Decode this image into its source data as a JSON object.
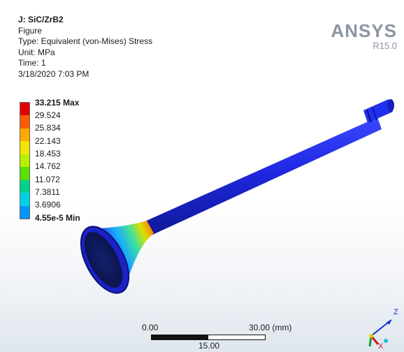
{
  "info": {
    "title": "J: SiC/ZrB2",
    "object": "Figure",
    "type": "Type: Equivalent (von-Mises) Stress",
    "unit": "Unit: MPa",
    "time": "Time: 1",
    "date": "3/18/2020 7:03 PM"
  },
  "brand": {
    "name": "ANSYS",
    "version": "R15.0"
  },
  "legend": {
    "labels": [
      {
        "text": "33.215 Max",
        "bold": true,
        "color": "#e00000"
      },
      {
        "text": "29.524",
        "bold": false,
        "color": "#ff5a00"
      },
      {
        "text": "25.834",
        "bold": false,
        "color": "#ffaa00"
      },
      {
        "text": "22.143",
        "bold": false,
        "color": "#f2e600"
      },
      {
        "text": "18.453",
        "bold": false,
        "color": "#b8f000"
      },
      {
        "text": "14.762",
        "bold": false,
        "color": "#5ae000"
      },
      {
        "text": "11.072",
        "bold": false,
        "color": "#00d28c"
      },
      {
        "text": "7.3811",
        "bold": false,
        "color": "#00d2e6"
      },
      {
        "text": "3.6906",
        "bold": false,
        "color": "#0096ff"
      },
      {
        "text": "4.55e-5 Min",
        "bold": true,
        "color": "#1428ff"
      }
    ]
  },
  "scale_bar": {
    "left": "0.00",
    "right": "30.00 (mm)",
    "middle": "15.00"
  },
  "triad": {
    "z": "Z",
    "x": "X"
  },
  "colors": {
    "model_blue": "#1a24d8",
    "hot_red": "#d81c10",
    "brand_gray": "#8a96a3"
  }
}
